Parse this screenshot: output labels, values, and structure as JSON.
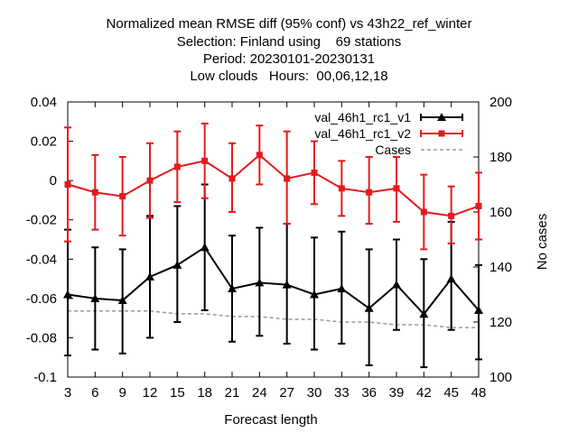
{
  "title_lines": [
    "Normalized mean RMSE diff (95% conf) vs 43h22_ref_winter",
    "Selection: Finland using    69 stations",
    "Period: 20230101-20230131",
    "Low clouds   Hours:  00,06,12,18"
  ],
  "chart_data": {
    "type": "line",
    "title": "Normalized mean RMSE diff (95% conf) vs 43h22_ref_winter",
    "xlabel": "Forecast length",
    "ylabel": "",
    "y2label": "No cases",
    "xlim": [
      3,
      48
    ],
    "ylim": [
      -0.1,
      0.04
    ],
    "y2lim": [
      100,
      200
    ],
    "x": [
      3,
      6,
      9,
      12,
      15,
      18,
      21,
      24,
      27,
      30,
      33,
      36,
      39,
      42,
      45,
      48
    ],
    "xticks": [
      "3",
      "6",
      "9",
      "12",
      "15",
      "18",
      "21",
      "24",
      "27",
      "30",
      "33",
      "36",
      "39",
      "42",
      "45",
      "48"
    ],
    "yticks": [
      "-0.1",
      "-0.08",
      "-0.06",
      "-0.04",
      "-0.02",
      "0",
      "0.02",
      "0.04"
    ],
    "y2ticks": [
      "100",
      "120",
      "140",
      "160",
      "180",
      "200"
    ],
    "grid": false,
    "legend_position": "top-right",
    "series": [
      {
        "name": "val_46h1_rc1_v1",
        "color": "#000000",
        "marker": "triangle",
        "values": [
          -0.058,
          -0.06,
          -0.061,
          -0.049,
          -0.043,
          -0.034,
          -0.055,
          -0.052,
          -0.053,
          -0.058,
          -0.055,
          -0.065,
          -0.053,
          -0.068,
          -0.05,
          -0.066
        ],
        "error_low": [
          -0.089,
          -0.086,
          -0.088,
          -0.08,
          -0.072,
          -0.066,
          -0.082,
          -0.079,
          -0.083,
          -0.086,
          -0.083,
          -0.094,
          -0.076,
          -0.095,
          -0.076,
          -0.091
        ],
        "error_high": [
          -0.025,
          -0.034,
          -0.035,
          -0.018,
          -0.013,
          -0.002,
          -0.028,
          -0.024,
          -0.022,
          -0.029,
          -0.026,
          -0.035,
          -0.03,
          -0.04,
          -0.021,
          -0.043
        ]
      },
      {
        "name": "val_46h1_rc1_v2",
        "color": "#e41a1c",
        "marker": "square",
        "values": [
          -0.002,
          -0.006,
          -0.008,
          0.0,
          0.007,
          0.01,
          0.001,
          0.013,
          0.001,
          0.004,
          -0.004,
          -0.006,
          -0.004,
          -0.016,
          -0.018,
          -0.013
        ],
        "error_low": [
          -0.031,
          -0.025,
          -0.028,
          -0.019,
          -0.011,
          -0.009,
          -0.016,
          -0.002,
          -0.022,
          -0.012,
          -0.018,
          -0.022,
          -0.021,
          -0.035,
          -0.032,
          -0.03
        ],
        "error_high": [
          0.027,
          0.013,
          0.012,
          0.019,
          0.025,
          0.029,
          0.019,
          0.028,
          0.025,
          0.02,
          0.01,
          0.012,
          0.012,
          0.003,
          -0.003,
          0.004
        ]
      },
      {
        "name": "Cases",
        "color": "#999999",
        "axis": "y2",
        "values": [
          124,
          124,
          124,
          124,
          123,
          123,
          122,
          122,
          121,
          121,
          120,
          120,
          119,
          119,
          118,
          118
        ]
      }
    ]
  }
}
